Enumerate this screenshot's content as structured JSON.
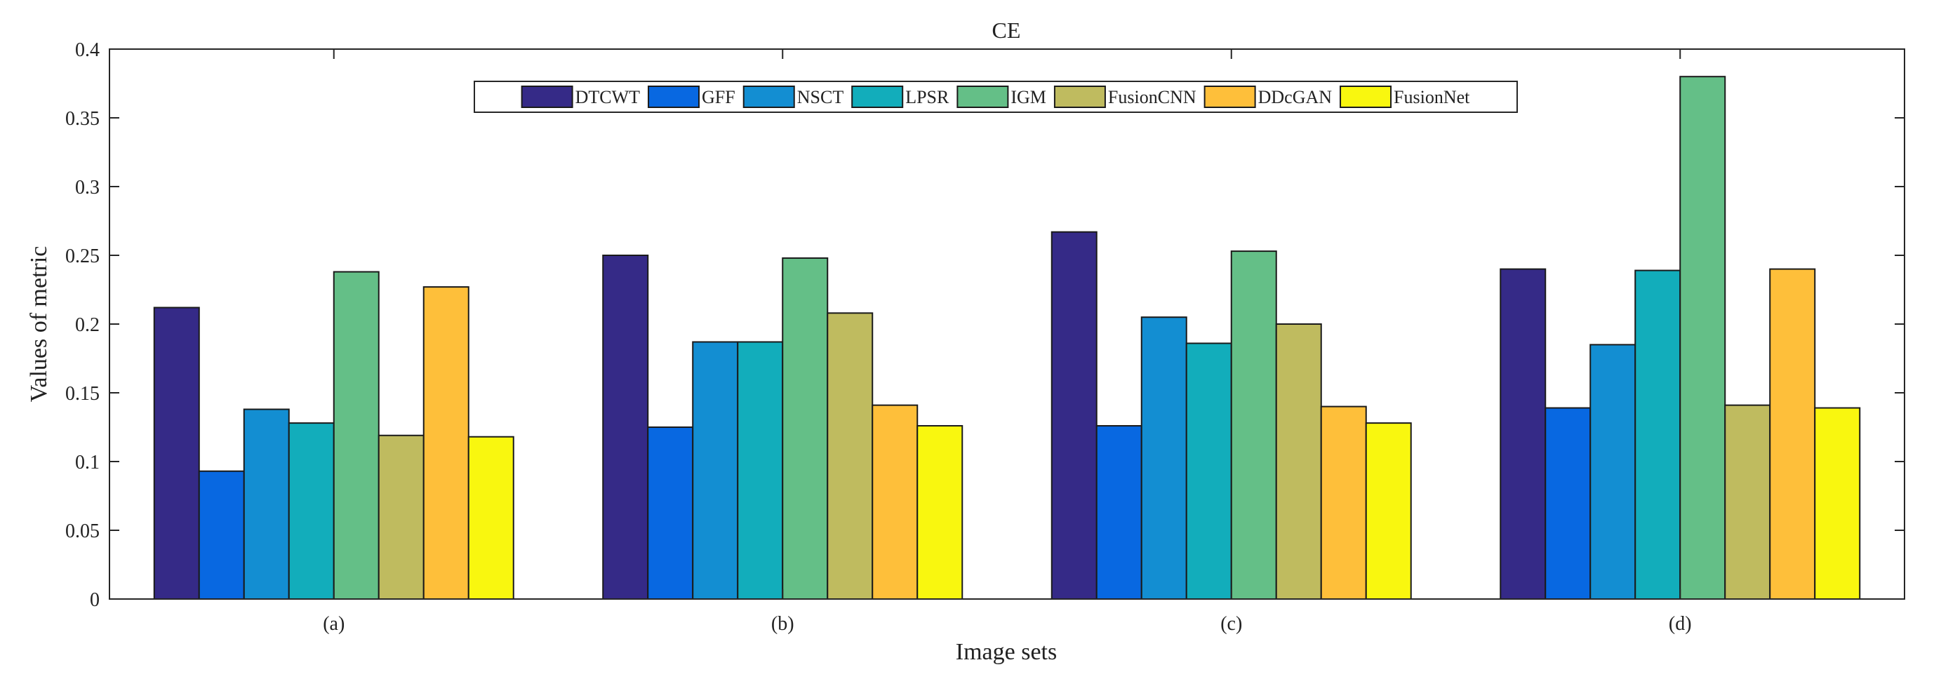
{
  "chart_data": {
    "type": "bar",
    "title": "CE",
    "xlabel": "Image sets",
    "ylabel": "Values of metric",
    "categories": [
      "(a)",
      "(b)",
      "(c)",
      "(d)"
    ],
    "ylim": [
      0,
      0.4
    ],
    "yticks": [
      0,
      0.05,
      0.1,
      0.15,
      0.2,
      0.25,
      0.3,
      0.35,
      0.4
    ],
    "ytick_labels": [
      "0",
      "0.05",
      "0.1",
      "0.15",
      "0.2",
      "0.25",
      "0.3",
      "0.35",
      "0.4"
    ],
    "legend_position": "top-center",
    "grid": false,
    "series": [
      {
        "name": "DTCWT",
        "color": "#352a87",
        "values": [
          0.212,
          0.25,
          0.267,
          0.24
        ]
      },
      {
        "name": "GFF",
        "color": "#0868e1",
        "values": [
          0.093,
          0.125,
          0.126,
          0.139
        ]
      },
      {
        "name": "NSCT",
        "color": "#138ed2",
        "values": [
          0.138,
          0.187,
          0.205,
          0.185
        ]
      },
      {
        "name": "LPSR",
        "color": "#12adbb",
        "values": [
          0.128,
          0.187,
          0.186,
          0.239
        ]
      },
      {
        "name": "IGM",
        "color": "#64bf87",
        "values": [
          0.238,
          0.248,
          0.253,
          0.38
        ]
      },
      {
        "name": "FusionCNN",
        "color": "#bfbb5f",
        "values": [
          0.119,
          0.208,
          0.2,
          0.141
        ]
      },
      {
        "name": "DDcGAN",
        "color": "#febf3a",
        "values": [
          0.227,
          0.141,
          0.14,
          0.24
        ]
      },
      {
        "name": "FusionNet",
        "color": "#f9f70f",
        "values": [
          0.118,
          0.126,
          0.128,
          0.139
        ]
      }
    ]
  }
}
